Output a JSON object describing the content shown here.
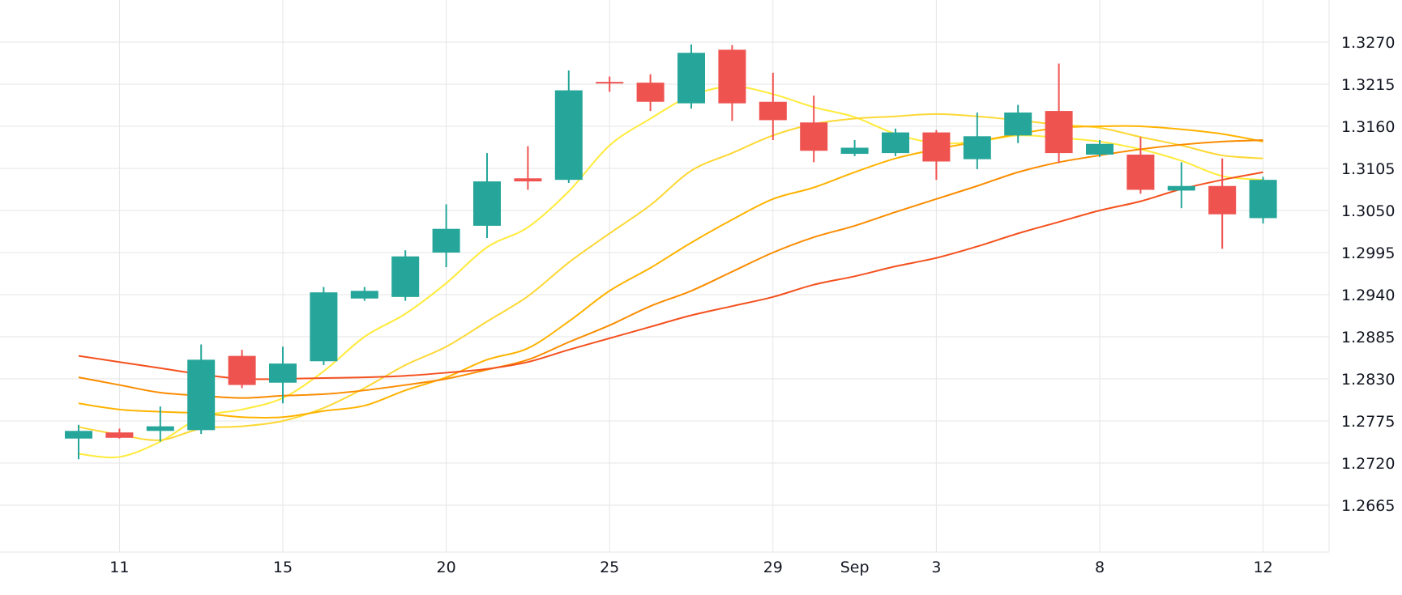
{
  "chart_data": {
    "type": "candlestick",
    "x_axis": {
      "tick_labels": [
        {
          "label": "11",
          "index": 1
        },
        {
          "label": "15",
          "index": 5
        },
        {
          "label": "20",
          "index": 9
        },
        {
          "label": "25",
          "index": 13
        },
        {
          "label": "29",
          "index": 17
        },
        {
          "label": "Sep",
          "index": 19
        },
        {
          "label": "3",
          "index": 21
        },
        {
          "label": "8",
          "index": 25
        },
        {
          "label": "12",
          "index": 29
        }
      ]
    },
    "y_axis": {
      "range": [
        1.261,
        1.332
      ],
      "tick_labels": [
        "1.3270",
        "1.3215",
        "1.3160",
        "1.3105",
        "1.3050",
        "1.2995",
        "1.2940",
        "1.2885",
        "1.2830",
        "1.2775",
        "1.2720",
        "1.2665"
      ],
      "side": "right"
    },
    "grid": true,
    "colors": {
      "up": "#26a69a",
      "down": "#ef5350",
      "ma": [
        "#ffeb3b",
        "#fdd835",
        "#ffb300",
        "#fb8c00",
        "#f4511e",
        "#e53935"
      ],
      "grid": "#e6e6e6"
    },
    "candles": [
      {
        "o": 1.2752,
        "h": 1.277,
        "l": 1.2725,
        "c": 1.2762
      },
      {
        "o": 1.276,
        "h": 1.2765,
        "l": 1.2752,
        "c": 1.2753
      },
      {
        "o": 1.2762,
        "h": 1.2794,
        "l": 1.2748,
        "c": 1.2768
      },
      {
        "o": 1.2763,
        "h": 1.2875,
        "l": 1.2758,
        "c": 1.2855
      },
      {
        "o": 1.286,
        "h": 1.2868,
        "l": 1.2818,
        "c": 1.2822
      },
      {
        "o": 1.2825,
        "h": 1.2872,
        "l": 1.2798,
        "c": 1.285
      },
      {
        "o": 1.2853,
        "h": 1.295,
        "l": 1.2848,
        "c": 1.2943
      },
      {
        "o": 1.2935,
        "h": 1.295,
        "l": 1.2932,
        "c": 1.2945
      },
      {
        "o": 1.2937,
        "h": 1.2998,
        "l": 1.2932,
        "c": 1.299
      },
      {
        "o": 1.2995,
        "h": 1.3058,
        "l": 1.2976,
        "c": 1.3026
      },
      {
        "o": 1.303,
        "h": 1.3125,
        "l": 1.3014,
        "c": 1.3088
      },
      {
        "o": 1.3092,
        "h": 1.3134,
        "l": 1.3077,
        "c": 1.3088
      },
      {
        "o": 1.309,
        "h": 1.3233,
        "l": 1.3086,
        "c": 1.3207
      },
      {
        "o": 1.3218,
        "h": 1.3225,
        "l": 1.3205,
        "c": 1.3216
      },
      {
        "o": 1.3217,
        "h": 1.3228,
        "l": 1.318,
        "c": 1.3192
      },
      {
        "o": 1.319,
        "h": 1.3267,
        "l": 1.3183,
        "c": 1.3256
      },
      {
        "o": 1.326,
        "h": 1.3266,
        "l": 1.3167,
        "c": 1.319
      },
      {
        "o": 1.3192,
        "h": 1.323,
        "l": 1.3142,
        "c": 1.3168
      },
      {
        "o": 1.3165,
        "h": 1.32,
        "l": 1.3113,
        "c": 1.3128
      },
      {
        "o": 1.3124,
        "h": 1.3142,
        "l": 1.3121,
        "c": 1.3132
      },
      {
        "o": 1.3125,
        "h": 1.3157,
        "l": 1.3121,
        "c": 1.3152
      },
      {
        "o": 1.3152,
        "h": 1.3155,
        "l": 1.309,
        "c": 1.3114
      },
      {
        "o": 1.3117,
        "h": 1.3178,
        "l": 1.3104,
        "c": 1.3147
      },
      {
        "o": 1.3148,
        "h": 1.3188,
        "l": 1.3138,
        "c": 1.3178
      },
      {
        "o": 1.318,
        "h": 1.3242,
        "l": 1.3112,
        "c": 1.3125
      },
      {
        "o": 1.3123,
        "h": 1.3142,
        "l": 1.312,
        "c": 1.3137
      },
      {
        "o": 1.3123,
        "h": 1.3146,
        "l": 1.3072,
        "c": 1.3077
      },
      {
        "o": 1.3076,
        "h": 1.3113,
        "l": 1.3053,
        "c": 1.3082
      },
      {
        "o": 1.3082,
        "h": 1.3118,
        "l": 1.3,
        "c": 1.3045
      },
      {
        "o": 1.304,
        "h": 1.3094,
        "l": 1.3033,
        "c": 1.309
      }
    ],
    "moving_averages": [
      {
        "values": [
          1.2732,
          1.2728,
          1.2748,
          1.278,
          1.279,
          1.2805,
          1.284,
          1.2885,
          1.2915,
          1.2955,
          1.3002,
          1.3028,
          1.3075,
          1.3135,
          1.317,
          1.32,
          1.3212,
          1.3202,
          1.3185,
          1.3172,
          1.315,
          1.3138,
          1.314,
          1.3148,
          1.3145,
          1.314,
          1.313,
          1.3115,
          1.3095,
          1.309
        ]
      },
      {
        "values": [
          1.2767,
          1.2757,
          1.275,
          1.2765,
          1.2768,
          1.2775,
          1.2792,
          1.2818,
          1.2848,
          1.2872,
          1.2905,
          1.2938,
          1.2982,
          1.302,
          1.3057,
          1.3102,
          1.3125,
          1.3148,
          1.3163,
          1.317,
          1.3173,
          1.3176,
          1.3173,
          1.3168,
          1.3162,
          1.3158,
          1.3146,
          1.3135,
          1.3122,
          1.3118
        ]
      },
      {
        "values": [
          1.2798,
          1.279,
          1.2787,
          1.2785,
          1.278,
          1.278,
          1.2788,
          1.2795,
          1.2815,
          1.2832,
          1.2855,
          1.287,
          1.2905,
          1.2945,
          1.2975,
          1.3008,
          1.3038,
          1.3065,
          1.308,
          1.31,
          1.3118,
          1.313,
          1.314,
          1.315,
          1.3158,
          1.316,
          1.316,
          1.3156,
          1.315,
          1.314
        ]
      },
      {
        "values": [
          1.2832,
          1.2822,
          1.2812,
          1.2808,
          1.2805,
          1.2808,
          1.281,
          1.2815,
          1.2822,
          1.283,
          1.2842,
          1.2855,
          1.2878,
          1.29,
          1.2925,
          1.2945,
          1.297,
          1.2995,
          1.3015,
          1.303,
          1.3048,
          1.3065,
          1.3082,
          1.31,
          1.3113,
          1.3122,
          1.313,
          1.3136,
          1.314,
          1.3142
        ]
      },
      {
        "values": [
          1.286,
          1.2852,
          1.2844,
          1.2836,
          1.283,
          1.283,
          1.2831,
          1.2832,
          1.2834,
          1.2838,
          1.2843,
          1.2852,
          1.2868,
          1.2883,
          1.2898,
          1.2913,
          1.2925,
          1.2937,
          1.2953,
          1.2964,
          1.2977,
          1.2988,
          1.3003,
          1.302,
          1.3035,
          1.305,
          1.3062,
          1.3078,
          1.309,
          1.31
        ]
      }
    ]
  }
}
